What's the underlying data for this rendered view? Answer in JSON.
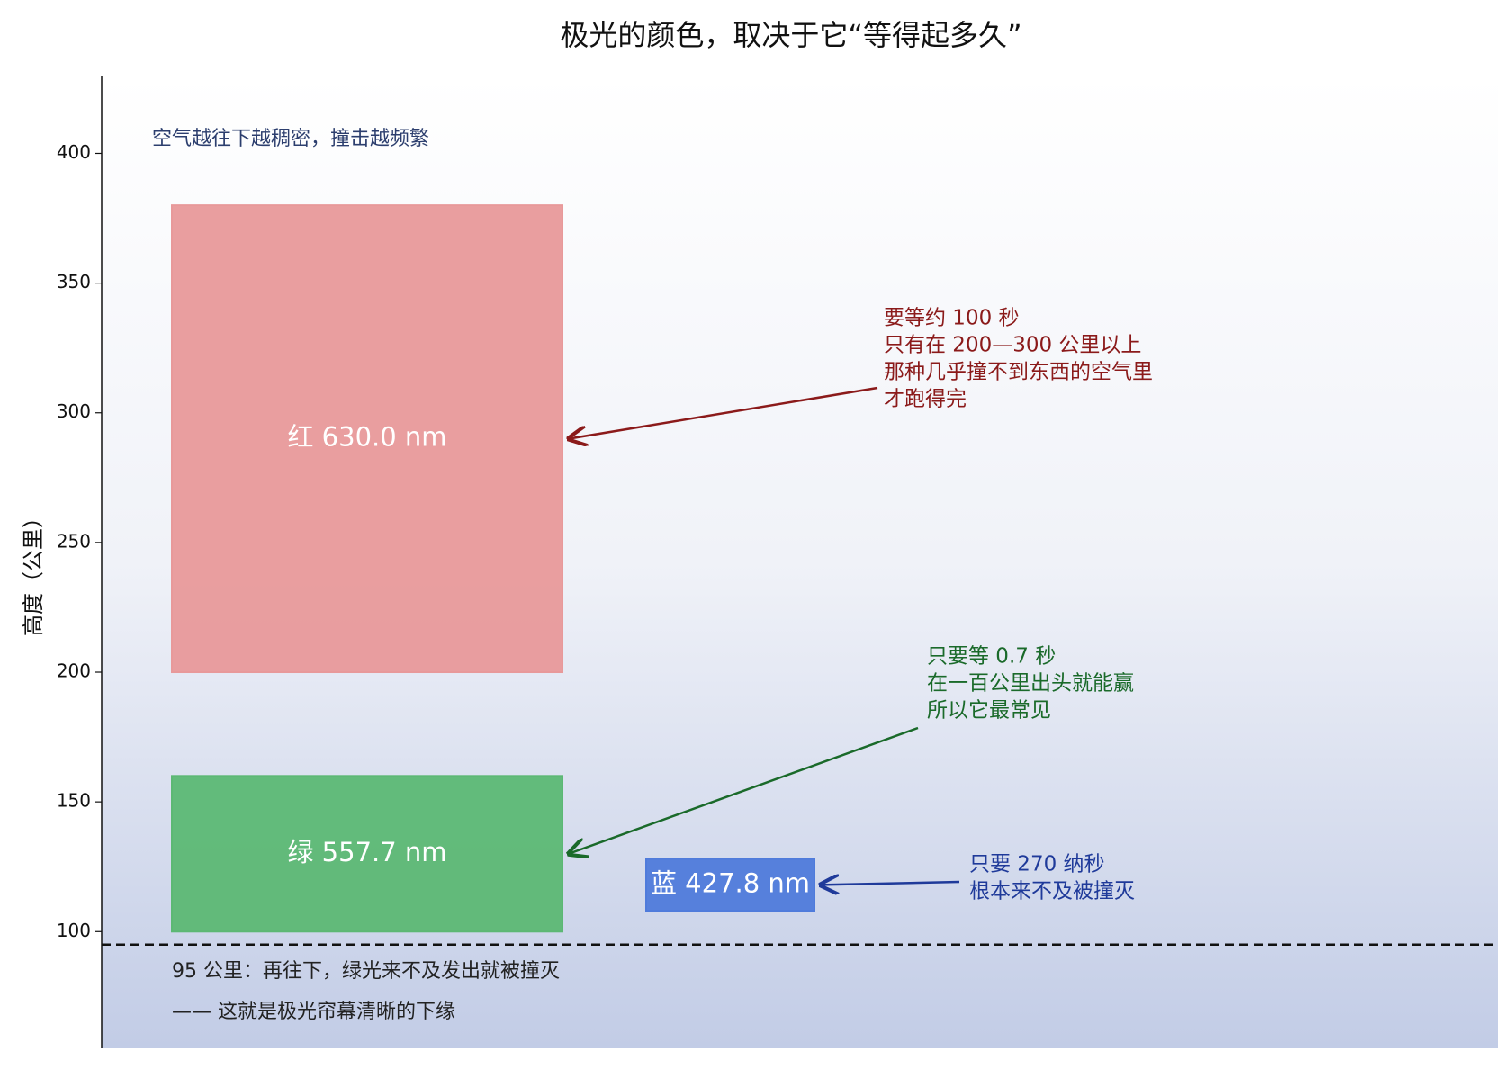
{
  "chart_data": {
    "type": "range_bar",
    "title": "极光的颜色，取决于它“等得起多久”",
    "y_label": "高度（公里）",
    "ylim": [
      55,
      430
    ],
    "yticks": [
      100,
      150,
      200,
      250,
      300,
      350,
      400
    ],
    "grid": false,
    "note": "空气越往下越稠密，撞击越频繁",
    "series": [
      {
        "name": "红  630.0 nm",
        "color": "#e8999a",
        "bottom": 200,
        "top": 380,
        "annotation": [
          "要等约 100 秒",
          "只有在 200—300 公里以上",
          "那种几乎撞不到东西的空气里",
          "才跑得完"
        ],
        "annotation_color": "#8b1a1a"
      },
      {
        "name": "绿  557.7 nm",
        "color": "#5cb874",
        "bottom": 100,
        "top": 160,
        "annotation": [
          "只要等 0.7 秒",
          "在一百公里出头就能赢",
          "所以它最常见"
        ],
        "annotation_color": "#1a6a2a"
      },
      {
        "name": "蓝 427.8 nm",
        "color": "#4f7bdb",
        "bottom": 108,
        "top": 128,
        "annotation": [
          "只要 270 纳秒",
          "根本来不及被撞灭"
        ],
        "annotation_color": "#1f3a9a"
      }
    ],
    "threshold": {
      "value": 95,
      "lines": [
        "95 公里：再往下，绿光来不及发出就被撞灭",
        "—— 这就是极光帘幕清晰的下缘"
      ]
    }
  }
}
